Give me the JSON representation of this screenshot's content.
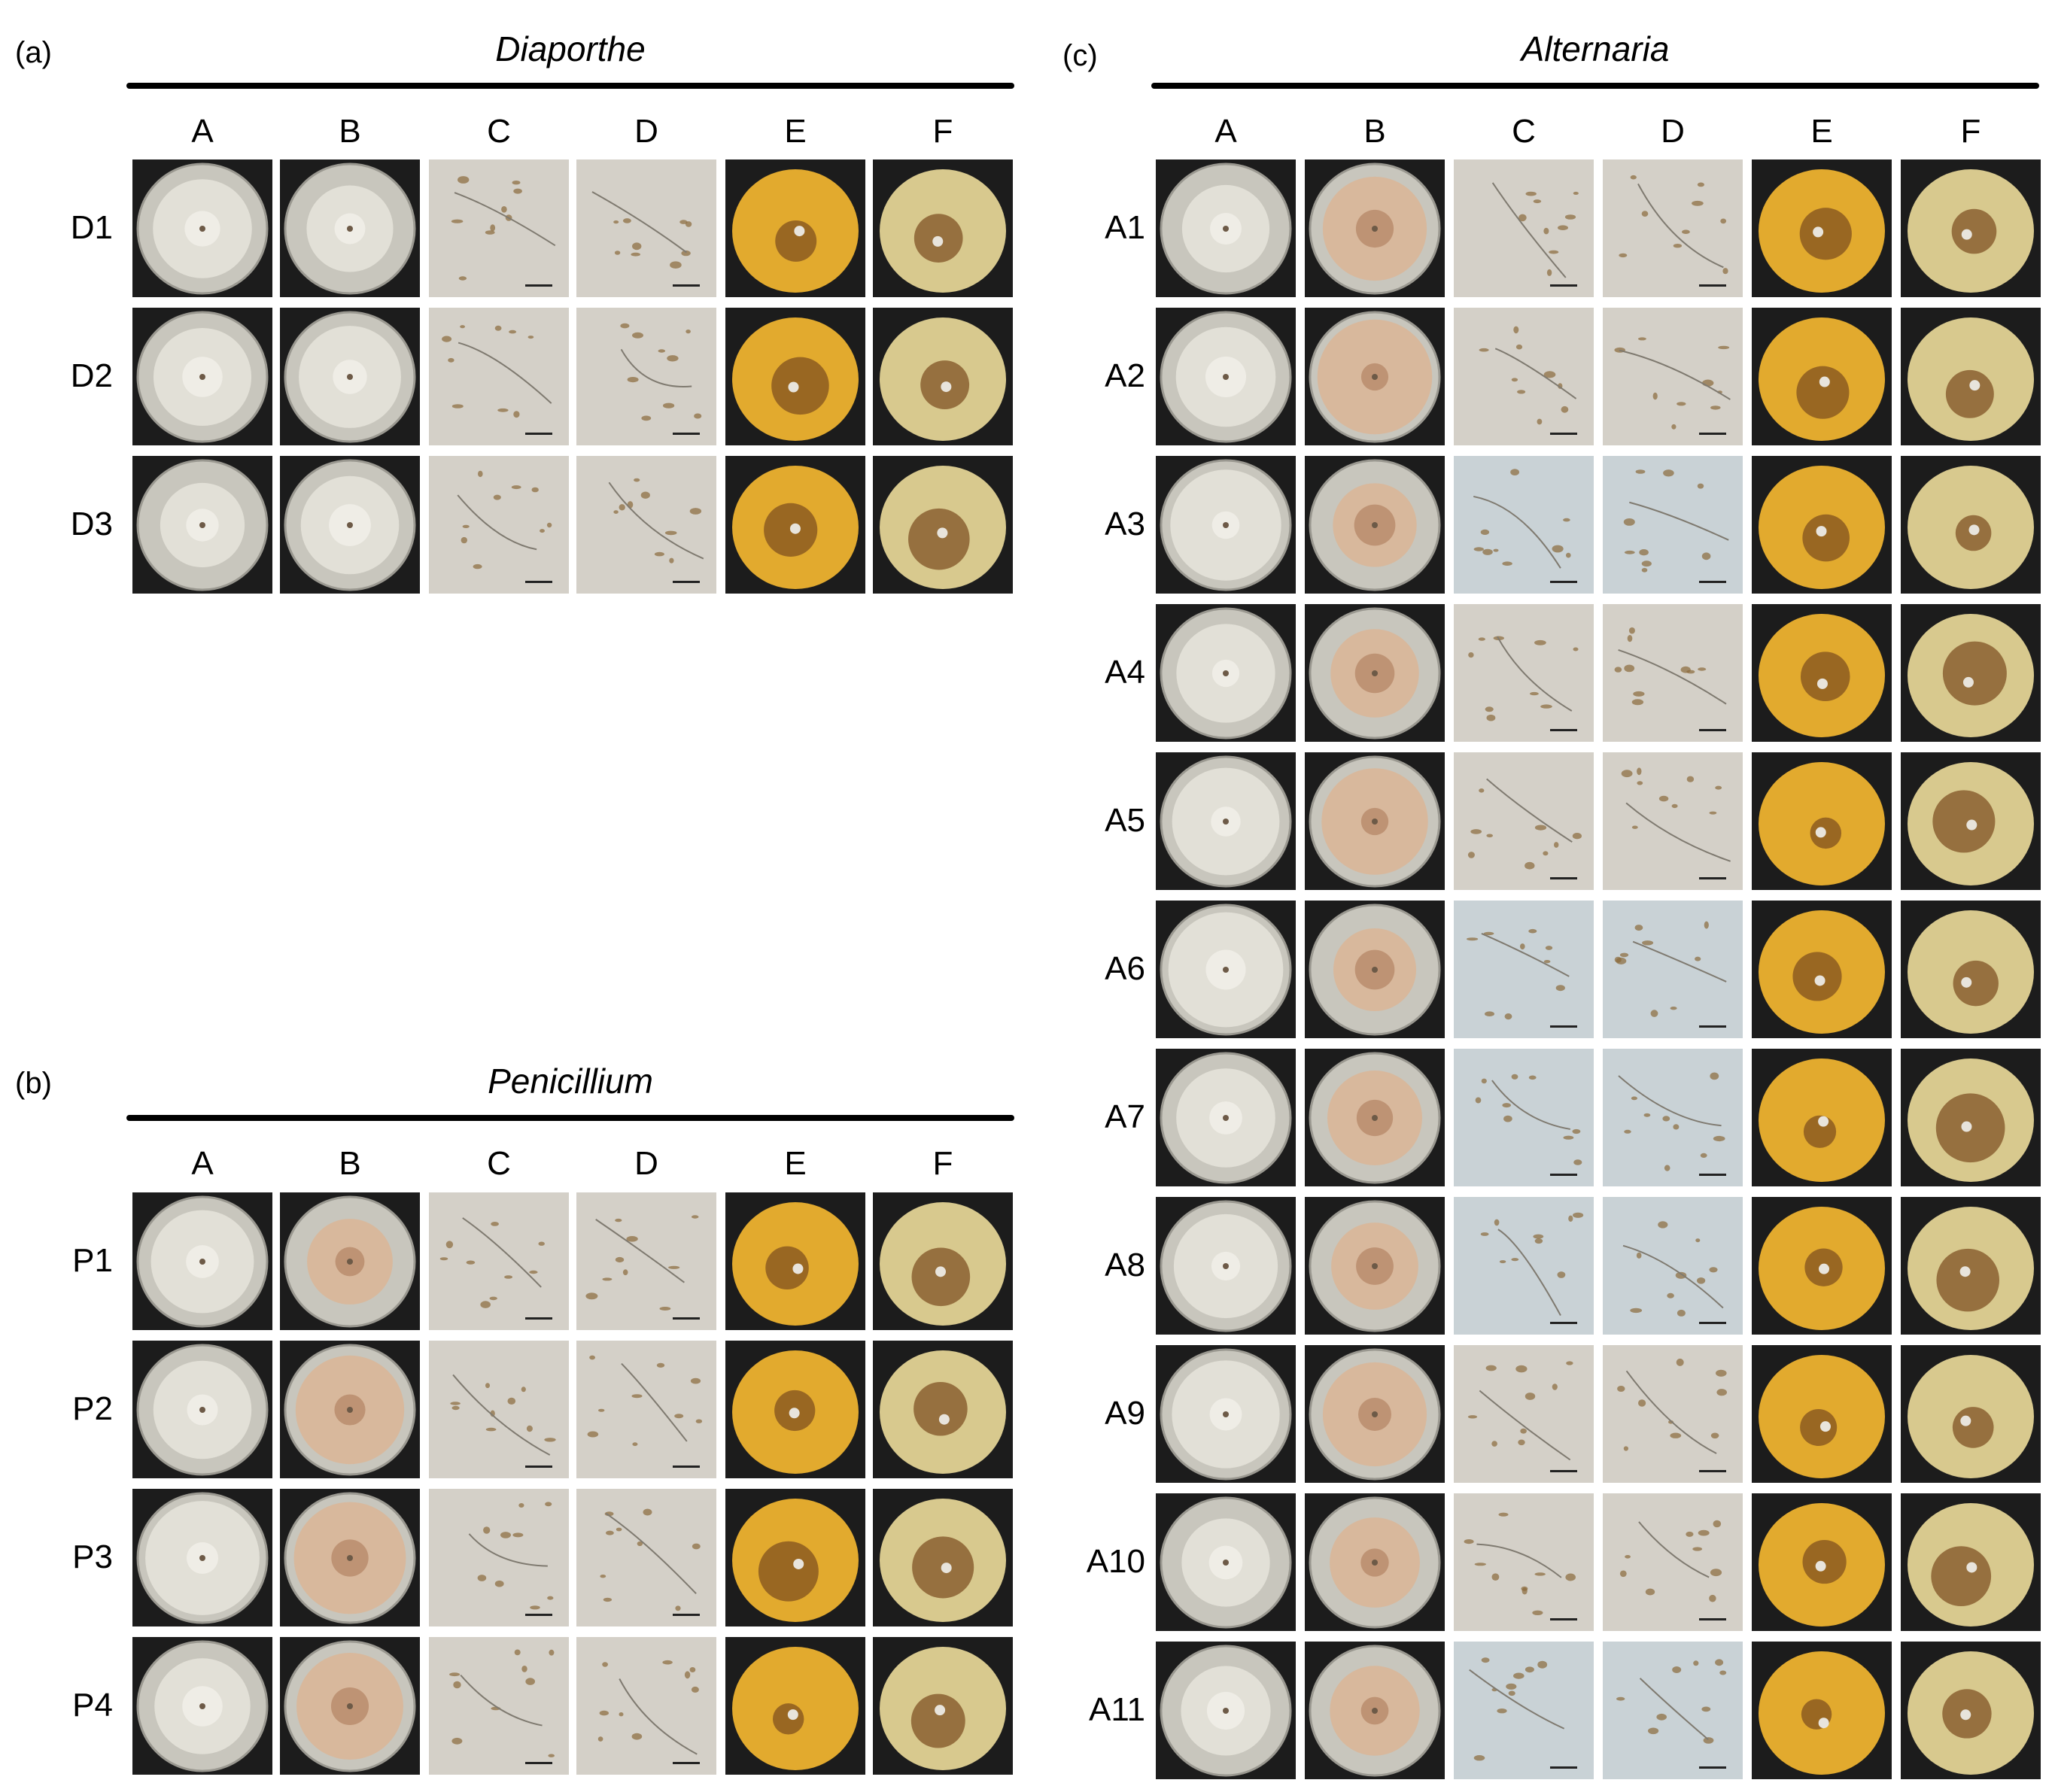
{
  "panels": {
    "a": {
      "letter": "(a)",
      "genus": "Diaporthe",
      "columns": [
        "A",
        "B",
        "C",
        "D",
        "E",
        "F"
      ],
      "rows": [
        "D1",
        "D2",
        "D3"
      ]
    },
    "b": {
      "letter": "(b)",
      "genus": "Penicillium",
      "columns": [
        "A",
        "B",
        "C",
        "D",
        "E",
        "F"
      ],
      "rows": [
        "P1",
        "P2",
        "P3",
        "P4"
      ]
    },
    "c": {
      "letter": "(c)",
      "genus": "Alternaria",
      "columns": [
        "A",
        "B",
        "C",
        "D",
        "E",
        "F"
      ],
      "rows": [
        "A1",
        "A2",
        "A3",
        "A4",
        "A5",
        "A6",
        "A7",
        "A8",
        "A9",
        "A10",
        "A11"
      ]
    }
  },
  "colors": {
    "plate_background": "#1c1c1c",
    "agar": "#c8c6bd",
    "micrograph": "#d4d0c8",
    "micrograph_blue": "#c9d2d6",
    "pear_yellow": "#e2aa2e",
    "pear_pale": "#d8c98e",
    "lesion_brown": "#7a4a1e"
  }
}
